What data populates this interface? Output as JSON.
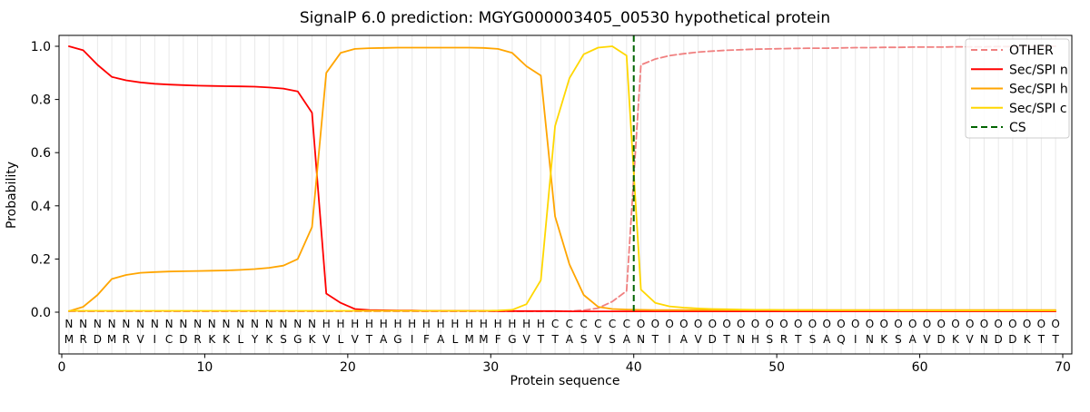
{
  "chart_data": {
    "type": "line",
    "title": "SignalP 6.0 prediction: MGYG000003405_00530 hypothetical protein",
    "xlabel": "Protein sequence",
    "ylabel": "Probability",
    "xticks": [
      0,
      10,
      20,
      30,
      40,
      50,
      60,
      70
    ],
    "yticks": [
      0.0,
      0.2,
      0.4,
      0.6,
      0.8,
      1.0
    ],
    "xlim": [
      -0.2,
      70.65
    ],
    "ylim": [
      -0.16,
      1.04
    ],
    "grid": "vertical line per residue, light grey",
    "legend_position": "upper right",
    "positions_note": "residues 1-70, each plotted at axis coordinate i-0.5",
    "sequence": "MRDMRVICDRKKLYKSGKVLVTAGIFALMMFGVTTASVSANTIAVDTNHSRTSAQINKSAVDKVNDDKTT",
    "region_labels": "NNNNNNNNNNNNNNNNNNHHHHHHHHHHHHHHHHCCCCCCOOOOOOOOOOOOOOOOOOOOOOOOOOOOOO",
    "region_colors": {
      "N": "#ff0000",
      "H": "#ffa500",
      "C": "#ffd700",
      "O": "#8a8a8a"
    },
    "sequence_color": "#333333",
    "cs_line": {
      "label": "CS",
      "position": 40,
      "color": "#006400",
      "style": "dashed"
    },
    "series": [
      {
        "name": "OTHER",
        "color": "#f08080",
        "style": "dashed",
        "values": [
          0.003,
          0.003,
          0.003,
          0.003,
          0.003,
          0.003,
          0.003,
          0.003,
          0.003,
          0.003,
          0.003,
          0.003,
          0.003,
          0.003,
          0.003,
          0.003,
          0.003,
          0.003,
          0.003,
          0.003,
          0.003,
          0.003,
          0.003,
          0.003,
          0.003,
          0.003,
          0.003,
          0.003,
          0.003,
          0.003,
          0.003,
          0.003,
          0.003,
          0.003,
          0.003,
          0.004,
          0.007,
          0.015,
          0.04,
          0.08,
          0.93,
          0.952,
          0.965,
          0.972,
          0.978,
          0.982,
          0.985,
          0.987,
          0.989,
          0.99,
          0.991,
          0.992,
          0.993,
          0.993,
          0.994,
          0.995,
          0.995,
          0.996,
          0.996,
          0.997,
          0.997,
          0.997,
          0.998,
          0.998,
          0.998,
          0.999,
          0.999,
          0.999,
          0.999,
          1.0
        ]
      },
      {
        "name": "Sec/SPI n",
        "color": "#ff0000",
        "style": "solid",
        "values": [
          1.0,
          0.985,
          0.93,
          0.885,
          0.872,
          0.864,
          0.859,
          0.856,
          0.854,
          0.852,
          0.851,
          0.85,
          0.849,
          0.848,
          0.845,
          0.841,
          0.83,
          0.75,
          0.07,
          0.035,
          0.012,
          0.008,
          0.007,
          0.006,
          0.006,
          0.005,
          0.005,
          0.005,
          0.005,
          0.005,
          0.004,
          0.004,
          0.004,
          0.004,
          0.004,
          0.003,
          0.003,
          0.003,
          0.003,
          0.003,
          0.003,
          0.003,
          0.003,
          0.003,
          0.003,
          0.003,
          0.003,
          0.003,
          0.003,
          0.003,
          0.003,
          0.003,
          0.003,
          0.003,
          0.003,
          0.003,
          0.003,
          0.003,
          0.003,
          0.003,
          0.003,
          0.003,
          0.003,
          0.003,
          0.003,
          0.003,
          0.003,
          0.003,
          0.003,
          0.003
        ]
      },
      {
        "name": "Sec/SPI h",
        "color": "#ffa500",
        "style": "solid",
        "values": [
          0.004,
          0.02,
          0.065,
          0.125,
          0.14,
          0.148,
          0.151,
          0.153,
          0.154,
          0.155,
          0.156,
          0.157,
          0.159,
          0.162,
          0.167,
          0.175,
          0.2,
          0.32,
          0.9,
          0.975,
          0.99,
          0.993,
          0.994,
          0.995,
          0.995,
          0.995,
          0.995,
          0.995,
          0.995,
          0.994,
          0.99,
          0.975,
          0.925,
          0.89,
          0.36,
          0.18,
          0.065,
          0.02,
          0.012,
          0.01,
          0.009,
          0.008,
          0.008,
          0.008,
          0.008,
          0.008,
          0.008,
          0.008,
          0.008,
          0.008,
          0.008,
          0.008,
          0.008,
          0.008,
          0.008,
          0.008,
          0.008,
          0.008,
          0.008,
          0.008,
          0.008,
          0.008,
          0.008,
          0.008,
          0.008,
          0.008,
          0.008,
          0.008,
          0.008,
          0.008
        ]
      },
      {
        "name": "Sec/SPI c",
        "color": "#ffd700",
        "style": "solid",
        "values": [
          0.005,
          0.005,
          0.005,
          0.005,
          0.005,
          0.005,
          0.005,
          0.005,
          0.005,
          0.005,
          0.005,
          0.005,
          0.005,
          0.005,
          0.005,
          0.005,
          0.005,
          0.005,
          0.005,
          0.005,
          0.005,
          0.005,
          0.005,
          0.005,
          0.005,
          0.005,
          0.005,
          0.005,
          0.005,
          0.005,
          0.006,
          0.009,
          0.03,
          0.12,
          0.7,
          0.88,
          0.97,
          0.995,
          1.0,
          0.965,
          0.085,
          0.035,
          0.022,
          0.017,
          0.014,
          0.012,
          0.011,
          0.01,
          0.009,
          0.009,
          0.008,
          0.008,
          0.008,
          0.007,
          0.007,
          0.007,
          0.007,
          0.007,
          0.006,
          0.006,
          0.006,
          0.006,
          0.006,
          0.006,
          0.006,
          0.006,
          0.006,
          0.006,
          0.006,
          0.006
        ]
      }
    ],
    "legend": {
      "items": [
        {
          "label": "OTHER",
          "color": "#f08080",
          "style": "dashed"
        },
        {
          "label": "Sec/SPI n",
          "color": "#ff0000",
          "style": "solid"
        },
        {
          "label": "Sec/SPI h",
          "color": "#ffa500",
          "style": "solid"
        },
        {
          "label": "Sec/SPI c",
          "color": "#ffd700",
          "style": "solid"
        },
        {
          "label": "CS",
          "color": "#006400",
          "style": "dashed"
        }
      ]
    }
  }
}
